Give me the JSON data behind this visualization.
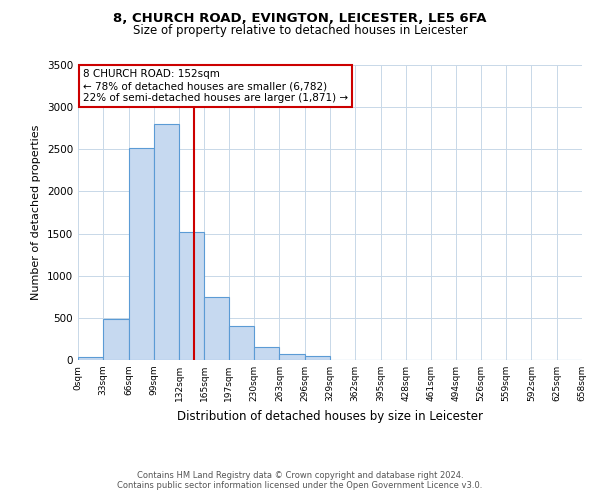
{
  "title1": "8, CHURCH ROAD, EVINGTON, LEICESTER, LE5 6FA",
  "title2": "Size of property relative to detached houses in Leicester",
  "xlabel": "Distribution of detached houses by size in Leicester",
  "ylabel": "Number of detached properties",
  "bin_edges": [
    0,
    33,
    66,
    99,
    132,
    165,
    197,
    230,
    263,
    296,
    329,
    362,
    395,
    428,
    461,
    494,
    526,
    559,
    592,
    625,
    658
  ],
  "bar_heights": [
    30,
    490,
    2510,
    2800,
    1520,
    750,
    400,
    155,
    70,
    50,
    0,
    0,
    0,
    0,
    0,
    0,
    0,
    0,
    0,
    0
  ],
  "bar_color": "#c6d9f0",
  "bar_edge_color": "#5b9bd5",
  "vline_x": 152,
  "vline_color": "#cc0000",
  "annotation_title": "8 CHURCH ROAD: 152sqm",
  "annotation_line1": "← 78% of detached houses are smaller (6,782)",
  "annotation_line2": "22% of semi-detached houses are larger (1,871) →",
  "annotation_box_color": "#ffffff",
  "annotation_box_edge": "#cc0000",
  "ylim": [
    0,
    3500
  ],
  "tick_labels": [
    "0sqm",
    "33sqm",
    "66sqm",
    "99sqm",
    "132sqm",
    "165sqm",
    "197sqm",
    "230sqm",
    "263sqm",
    "296sqm",
    "329sqm",
    "362sqm",
    "395sqm",
    "428sqm",
    "461sqm",
    "494sqm",
    "526sqm",
    "559sqm",
    "592sqm",
    "625sqm",
    "658sqm"
  ],
  "footer1": "Contains HM Land Registry data © Crown copyright and database right 2024.",
  "footer2": "Contains public sector information licensed under the Open Government Licence v3.0.",
  "bg_color": "#ffffff",
  "grid_color": "#c8d8e8"
}
